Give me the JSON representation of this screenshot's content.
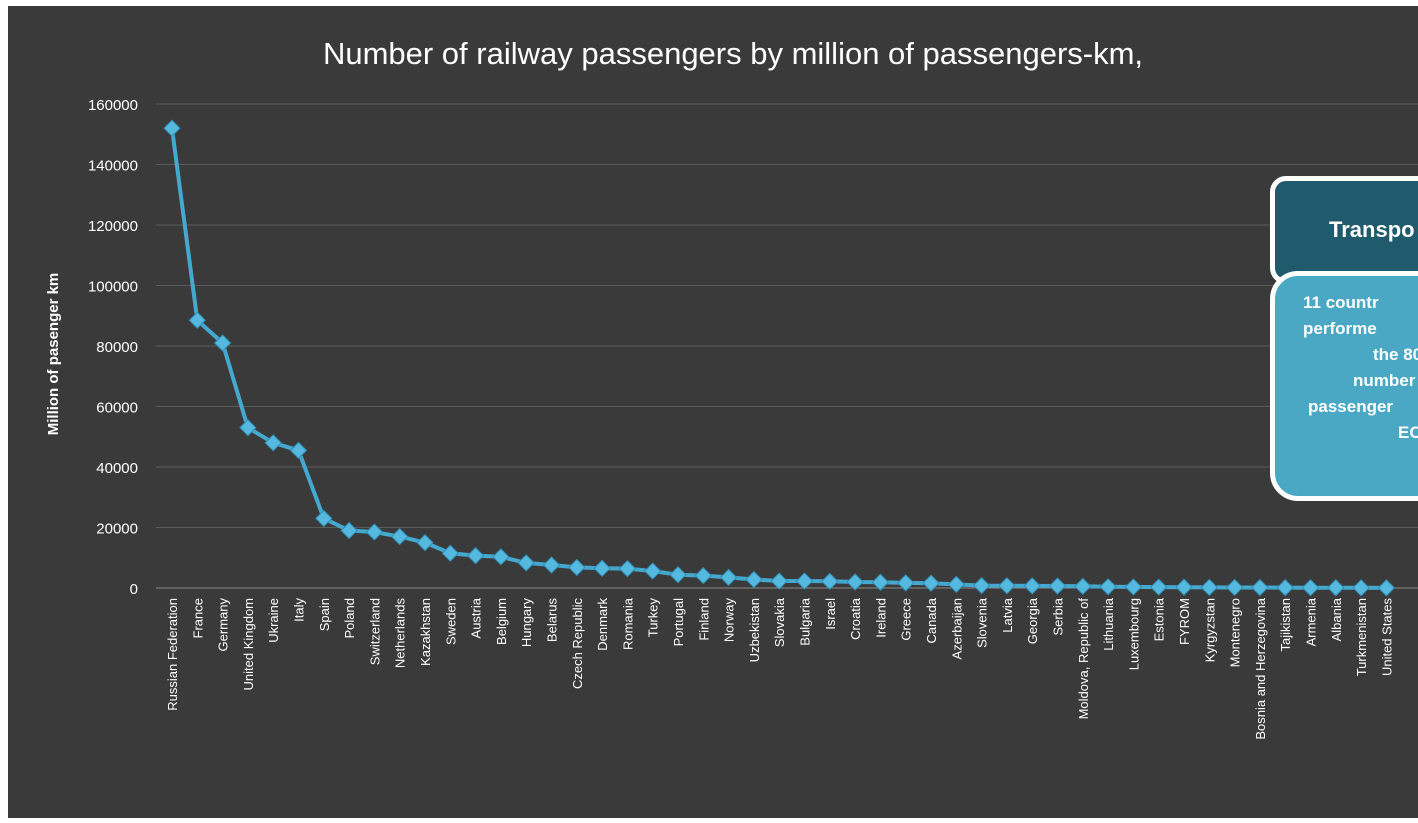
{
  "chart_data": {
    "type": "line",
    "title": "Number of railway passengers by million of passengers-km,",
    "xlabel": "",
    "ylabel": "Million of pasenger km",
    "ylim": [
      0,
      160000
    ],
    "yticks": [
      0,
      20000,
      40000,
      60000,
      80000,
      100000,
      120000,
      140000,
      160000
    ],
    "grid": true,
    "categories": [
      "Russian Federation",
      "France",
      "Germany",
      "United Kingdom",
      "Ukraine",
      "Italy",
      "Spain",
      "Poland",
      "Switzerland",
      "Netherlands",
      "Kazakhstan",
      "Sweden",
      "Austria",
      "Belgium",
      "Hungary",
      "Belarus",
      "Czech Republic",
      "Denmark",
      "Romania",
      "Turkey",
      "Portugal",
      "Finland",
      "Norway",
      "Uzbekistan",
      "Slovakia",
      "Bulgaria",
      "Israel",
      "Croatia",
      "Ireland",
      "Greece",
      "Canada",
      "Azerbaijan",
      "Slovenia",
      "Latvia",
      "Georgia",
      "Serbia",
      "Moldova,  Republic of",
      "Lithuania",
      "Luxembourg",
      "Estonia",
      "FYROM",
      "Kyrgyzstan",
      "Montenegro",
      "Bosnia and Herzegovina",
      "Tajikistan",
      "Armenia",
      "Albania",
      "Turkmenistan",
      "United States"
    ],
    "values": [
      152000,
      88500,
      81000,
      53000,
      48000,
      45500,
      23000,
      19000,
      18500,
      17000,
      15000,
      11500,
      10700,
      10300,
      8300,
      7600,
      6800,
      6500,
      6400,
      5600,
      4400,
      4100,
      3500,
      2800,
      2300,
      2300,
      2200,
      2000,
      1900,
      1700,
      1600,
      1200,
      800,
      750,
      700,
      650,
      550,
      400,
      350,
      300,
      280,
      200,
      180,
      150,
      120,
      100,
      80,
      60,
      40
    ],
    "series": [
      {
        "values": [
          152000,
          88500,
          81000,
          53000,
          48000,
          45500,
          23000,
          19000,
          18500,
          17000,
          15000,
          11500,
          10700,
          10300,
          8300,
          7600,
          6800,
          6500,
          6400,
          5600,
          4400,
          4100,
          3500,
          2800,
          2300,
          2300,
          2200,
          2000,
          1900,
          1700,
          1600,
          1200,
          800,
          750,
          700,
          650,
          550,
          400,
          350,
          300,
          280,
          200,
          180,
          150,
          120,
          100,
          80,
          60,
          40
        ]
      }
    ]
  },
  "callout": {
    "title": "Transpo",
    "body_lines": [
      "11 countr",
      "performe",
      "the 80",
      "number",
      "passenger",
      "ECE"
    ]
  },
  "colors": {
    "background": "#3a3a3a",
    "series": "#45a9cf",
    "marker": "#55b8de",
    "grid": "#5c5c5c",
    "text": "#ffffff",
    "callout_title_bg": "#1f5b6c",
    "callout_body_bg": "#4aa8c5"
  }
}
